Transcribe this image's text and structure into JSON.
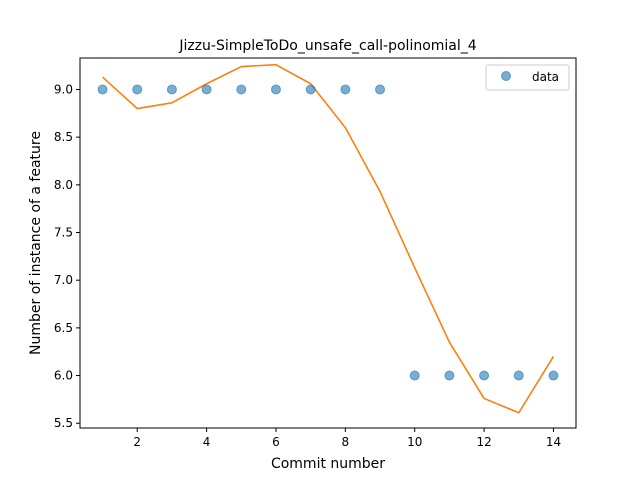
{
  "chart_data": {
    "type": "scatter",
    "title": "Jizzu-SimpleToDo_unsafe_call-polinomial_4",
    "xlabel": "Commit number",
    "ylabel": "Number of instance of a feature",
    "xlim": [
      0.35,
      14.65
    ],
    "ylim": [
      5.45,
      9.33
    ],
    "xticks": [
      2,
      4,
      6,
      8,
      10,
      12,
      14
    ],
    "xtick_labels": [
      "2",
      "4",
      "6",
      "8",
      "10",
      "12",
      "14"
    ],
    "yticks": [
      5.5,
      6.0,
      6.5,
      7.0,
      7.5,
      8.0,
      8.5,
      9.0
    ],
    "ytick_labels": [
      "5.5",
      "6.0",
      "6.5",
      "7.0",
      "7.5",
      "8.0",
      "8.5",
      "9.0"
    ],
    "grid": false,
    "legend": {
      "location": "upper right",
      "entries": [
        "data"
      ]
    },
    "series": [
      {
        "name": "data",
        "kind": "scatter",
        "color": "#1f77b4",
        "x": [
          1,
          2,
          3,
          4,
          5,
          6,
          7,
          8,
          9,
          10,
          11,
          12,
          13,
          14
        ],
        "y": [
          9,
          9,
          9,
          9,
          9,
          9,
          9,
          9,
          9,
          6,
          6,
          6,
          6,
          6
        ]
      },
      {
        "kind": "line",
        "color": "#ff7f0e",
        "x": [
          1,
          2,
          3,
          4,
          5,
          6,
          7,
          8,
          9,
          10,
          11,
          12,
          13,
          14
        ],
        "y": [
          9.13,
          8.8,
          8.86,
          9.06,
          9.24,
          9.26,
          9.06,
          8.6,
          7.93,
          7.13,
          6.35,
          5.76,
          5.61,
          6.2
        ]
      }
    ]
  }
}
